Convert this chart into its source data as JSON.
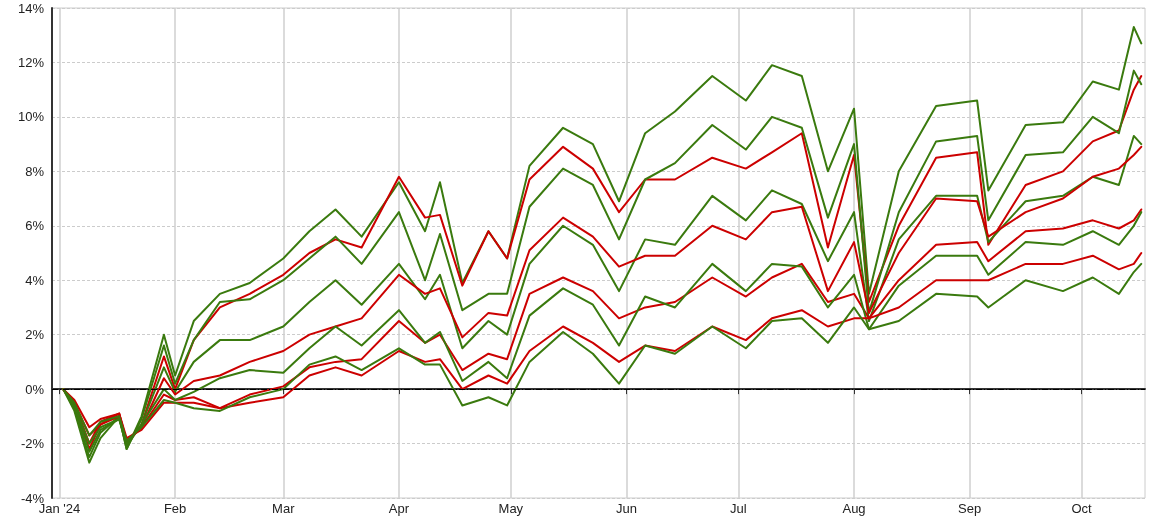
{
  "chart_data": {
    "type": "line",
    "x": [
      "2024-01-02",
      "2024-01-05",
      "2024-01-09",
      "2024-01-12",
      "2024-01-17",
      "2024-01-19",
      "2024-01-23",
      "2024-01-29",
      "2024-02-01",
      "2024-02-06",
      "2024-02-13",
      "2024-02-21",
      "2024-03-01",
      "2024-03-08",
      "2024-03-15",
      "2024-03-22",
      "2024-04-01",
      "2024-04-08",
      "2024-04-12",
      "2024-04-18",
      "2024-04-25",
      "2024-04-30",
      "2024-05-06",
      "2024-05-15",
      "2024-05-23",
      "2024-05-30",
      "2024-06-06",
      "2024-06-14",
      "2024-06-24",
      "2024-07-03",
      "2024-07-10",
      "2024-07-18",
      "2024-07-25",
      "2024-08-01",
      "2024-08-05",
      "2024-08-13",
      "2024-08-23",
      "2024-09-03",
      "2024-09-06",
      "2024-09-16",
      "2024-09-26",
      "2024-10-04",
      "2024-10-11",
      "2024-10-15",
      "2024-10-17"
    ],
    "series": [
      {
        "color": "#3a7a0e",
        "values": [
          0,
          -0.8,
          -2.7,
          -1.8,
          -1.0,
          -2.2,
          -1.0,
          2.0,
          0.5,
          2.5,
          3.5,
          3.9,
          4.8,
          5.8,
          6.6,
          5.6,
          7.6,
          5.8,
          7.6,
          3.9,
          5.8,
          4.8,
          8.2,
          9.6,
          9.0,
          6.9,
          9.4,
          10.2,
          11.5,
          10.6,
          11.9,
          11.5,
          8.0,
          10.3,
          3.5,
          8.0,
          10.4,
          10.6,
          7.3,
          9.7,
          9.8,
          11.3,
          11.0,
          13.3,
          12.7
        ]
      },
      {
        "color": "#cc0000",
        "values": [
          0,
          -0.6,
          -2.2,
          -1.3,
          -0.9,
          -2.0,
          -1.3,
          1.2,
          0.0,
          1.8,
          3.0,
          3.5,
          4.2,
          5.0,
          5.5,
          5.2,
          7.8,
          6.3,
          6.4,
          3.8,
          5.8,
          4.8,
          7.7,
          8.9,
          8.1,
          6.5,
          7.7,
          7.7,
          8.5,
          8.1,
          8.7,
          9.4,
          5.2,
          8.6,
          3.2,
          6.0,
          8.5,
          8.7,
          5.3,
          7.5,
          8.0,
          9.1,
          9.5,
          11.0,
          11.5
        ]
      },
      {
        "color": "#3a7a0e",
        "values": [
          0,
          -0.7,
          -2.5,
          -1.6,
          -1.0,
          -2.2,
          -1.1,
          1.6,
          0.2,
          1.8,
          3.2,
          3.3,
          4.0,
          4.8,
          5.6,
          4.6,
          6.5,
          4.0,
          5.7,
          2.9,
          3.5,
          3.5,
          6.7,
          8.1,
          7.5,
          5.5,
          7.7,
          8.3,
          9.7,
          8.8,
          10.0,
          9.6,
          6.3,
          9.0,
          2.8,
          6.5,
          9.1,
          9.3,
          6.2,
          8.6,
          8.7,
          10.0,
          9.4,
          11.7,
          11.2
        ]
      },
      {
        "color": "#3a7a0e",
        "values": [
          0,
          -0.6,
          -2.3,
          -1.5,
          -1.1,
          -2.1,
          -1.3,
          0.8,
          -0.1,
          1.0,
          1.8,
          1.8,
          2.3,
          3.2,
          4.0,
          3.1,
          4.6,
          3.3,
          4.2,
          1.5,
          2.5,
          2.0,
          4.6,
          6.0,
          5.3,
          3.6,
          5.5,
          5.3,
          7.1,
          6.2,
          7.3,
          6.8,
          4.7,
          6.5,
          2.5,
          5.5,
          7.1,
          7.1,
          5.4,
          6.9,
          7.1,
          7.8,
          7.5,
          9.3,
          9.0
        ]
      },
      {
        "color": "#cc0000",
        "values": [
          0,
          -0.5,
          -2.0,
          -1.2,
          -0.9,
          -1.9,
          -1.4,
          0.4,
          -0.2,
          0.3,
          0.5,
          1.0,
          1.4,
          2.0,
          2.3,
          2.6,
          4.2,
          3.5,
          3.7,
          1.9,
          2.8,
          2.7,
          5.1,
          6.3,
          5.6,
          4.5,
          4.9,
          4.9,
          6.0,
          5.5,
          6.5,
          6.7,
          3.6,
          5.4,
          2.8,
          5.0,
          7.0,
          6.9,
          5.6,
          6.5,
          7.0,
          7.8,
          8.1,
          8.6,
          8.9
        ]
      },
      {
        "color": "#cc0000",
        "values": [
          0,
          -0.5,
          -1.7,
          -1.3,
          -1.0,
          -1.9,
          -1.4,
          -0.2,
          -0.4,
          -0.3,
          -0.7,
          -0.2,
          0.1,
          0.8,
          1.0,
          1.1,
          2.5,
          1.7,
          2.0,
          0.7,
          1.3,
          1.1,
          3.5,
          4.1,
          3.6,
          2.6,
          3.0,
          3.2,
          4.1,
          3.4,
          4.1,
          4.6,
          3.2,
          3.5,
          2.6,
          4.0,
          5.3,
          5.4,
          4.7,
          5.8,
          5.9,
          6.2,
          5.9,
          6.2,
          6.6
        ]
      },
      {
        "color": "#3a7a0e",
        "values": [
          0,
          -0.6,
          -2.0,
          -1.4,
          -1.1,
          -2.0,
          -1.3,
          0.0,
          -0.4,
          -0.1,
          0.4,
          0.7,
          0.6,
          1.5,
          2.3,
          1.6,
          2.9,
          1.7,
          2.1,
          0.3,
          1.0,
          0.4,
          2.7,
          3.7,
          3.1,
          1.6,
          3.4,
          3.0,
          4.6,
          3.6,
          4.6,
          4.5,
          3.0,
          4.2,
          2.2,
          3.8,
          4.9,
          4.9,
          4.2,
          5.4,
          5.3,
          5.8,
          5.3,
          6.0,
          6.5
        ]
      },
      {
        "color": "#cc0000",
        "values": [
          0,
          -0.4,
          -1.4,
          -1.1,
          -0.9,
          -1.8,
          -1.5,
          -0.5,
          -0.5,
          -0.5,
          -0.7,
          -0.5,
          -0.3,
          0.5,
          0.8,
          0.5,
          1.4,
          1.0,
          1.1,
          0.0,
          0.5,
          0.2,
          1.4,
          2.3,
          1.7,
          1.0,
          1.6,
          1.4,
          2.3,
          1.8,
          2.6,
          2.9,
          2.3,
          2.6,
          2.6,
          3.0,
          4.0,
          4.0,
          4.0,
          4.6,
          4.6,
          4.9,
          4.4,
          4.6,
          5.0
        ]
      },
      {
        "color": "#3a7a0e",
        "values": [
          0,
          -0.5,
          -1.7,
          -1.2,
          -1.0,
          -1.9,
          -1.4,
          -0.4,
          -0.5,
          -0.7,
          -0.8,
          -0.3,
          0.0,
          0.9,
          1.2,
          0.7,
          1.5,
          0.9,
          0.9,
          -0.6,
          -0.3,
          -0.6,
          1.0,
          2.1,
          1.3,
          0.2,
          1.6,
          1.3,
          2.3,
          1.5,
          2.5,
          2.6,
          1.7,
          3.0,
          2.2,
          2.5,
          3.5,
          3.4,
          3.0,
          4.0,
          3.6,
          4.1,
          3.5,
          4.3,
          4.6
        ]
      }
    ],
    "xlim": [
      "2023-12-30",
      "2024-10-18"
    ],
    "xticks": [
      {
        "value": "2024-01-01",
        "label": "Jan '24"
      },
      {
        "value": "2024-02-01",
        "label": "Feb"
      },
      {
        "value": "2024-03-01",
        "label": "Mar"
      },
      {
        "value": "2024-04-01",
        "label": "Apr"
      },
      {
        "value": "2024-05-01",
        "label": "May"
      },
      {
        "value": "2024-06-01",
        "label": "Jun"
      },
      {
        "value": "2024-07-01",
        "label": "Jul"
      },
      {
        "value": "2024-08-01",
        "label": "Aug"
      },
      {
        "value": "2024-09-01",
        "label": "Sep"
      },
      {
        "value": "2024-10-01",
        "label": "Oct"
      }
    ],
    "ylim": [
      -4,
      14
    ],
    "yticks": [
      {
        "value": -4,
        "label": "-4%"
      },
      {
        "value": -2,
        "label": "-2%"
      },
      {
        "value": 0,
        "label": "0%"
      },
      {
        "value": 2,
        "label": "2%"
      },
      {
        "value": 4,
        "label": "4%"
      },
      {
        "value": 6,
        "label": "6%"
      },
      {
        "value": 8,
        "label": "8%"
      },
      {
        "value": 10,
        "label": "10%"
      },
      {
        "value": 12,
        "label": "12%"
      },
      {
        "value": 14,
        "label": "14%"
      }
    ],
    "ref_lines": [
      {
        "axis": "y",
        "value": 0,
        "color": "#000000",
        "line_style": "dashed"
      }
    ],
    "grid": true,
    "marker": "none",
    "line_style": "solid"
  }
}
